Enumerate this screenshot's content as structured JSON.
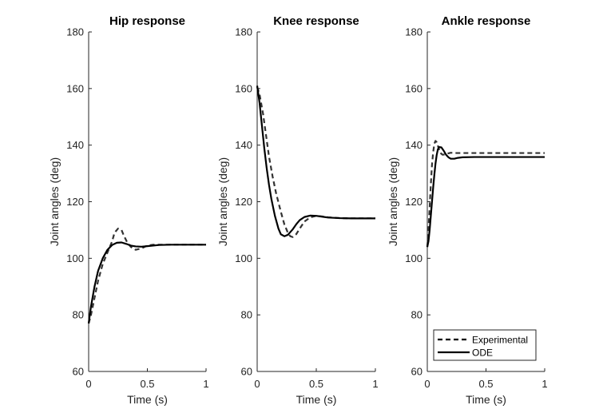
{
  "chart_data": [
    {
      "type": "line",
      "title": "Hip response",
      "xlabel": "Time (s)",
      "ylabel": "Joint angles (deg)",
      "xlim": [
        0,
        1
      ],
      "ylim": [
        60,
        180
      ],
      "xticks": [
        "0",
        "0.5",
        "1"
      ],
      "yticks": [
        "60",
        "80",
        "100",
        "120",
        "140",
        "160",
        "180"
      ],
      "grid": false,
      "series": [
        {
          "name": "Experimental",
          "style": "dashed",
          "x": [
            0,
            0.02,
            0.05,
            0.08,
            0.12,
            0.16,
            0.2,
            0.22,
            0.25,
            0.28,
            0.3,
            0.33,
            0.36,
            0.4,
            0.45,
            0.5,
            0.55,
            0.6,
            0.7,
            0.8,
            0.9,
            1.0
          ],
          "y": [
            77,
            80,
            86,
            92,
            98,
            102,
            106,
            109,
            110.5,
            110,
            108,
            105.5,
            104,
            103,
            103.5,
            104.5,
            104.8,
            104.8,
            104.8,
            104.8,
            104.8,
            104.8
          ]
        },
        {
          "name": "ODE",
          "style": "solid",
          "x": [
            0,
            0.02,
            0.05,
            0.08,
            0.12,
            0.16,
            0.2,
            0.24,
            0.28,
            0.32,
            0.36,
            0.4,
            0.45,
            0.5,
            0.6,
            0.7,
            0.8,
            0.9,
            1.0
          ],
          "y": [
            77,
            83,
            90,
            95.5,
            100,
            103,
            104.7,
            105.5,
            105.6,
            105.1,
            104.5,
            104.2,
            104.1,
            104.3,
            104.7,
            104.8,
            104.8,
            104.8,
            104.8
          ]
        }
      ]
    },
    {
      "type": "line",
      "title": "Knee response",
      "xlabel": "Time (s)",
      "ylabel": "Joint angles (deg)",
      "xlim": [
        0,
        1
      ],
      "ylim": [
        60,
        180
      ],
      "xticks": [
        "0",
        "0.5",
        "1"
      ],
      "yticks": [
        "60",
        "80",
        "100",
        "120",
        "140",
        "160",
        "180"
      ],
      "grid": false,
      "series": [
        {
          "name": "Experimental",
          "style": "dashed",
          "x": [
            0,
            0.02,
            0.05,
            0.08,
            0.1,
            0.13,
            0.16,
            0.2,
            0.23,
            0.26,
            0.28,
            0.3,
            0.33,
            0.36,
            0.4,
            0.45,
            0.5,
            0.55,
            0.6,
            0.7,
            0.8,
            0.9,
            1.0
          ],
          "y": [
            160.5,
            158,
            151,
            142,
            136,
            129,
            123,
            116.5,
            112,
            109,
            107.8,
            107.5,
            108.5,
            110.5,
            113,
            114.5,
            115,
            114.8,
            114.5,
            114.2,
            114.1,
            114.1,
            114.1
          ]
        },
        {
          "name": "ODE",
          "style": "solid",
          "x": [
            0,
            0.02,
            0.04,
            0.06,
            0.08,
            0.1,
            0.12,
            0.15,
            0.18,
            0.2,
            0.23,
            0.26,
            0.3,
            0.33,
            0.36,
            0.4,
            0.45,
            0.5,
            0.55,
            0.6,
            0.7,
            0.8,
            0.9,
            1.0
          ],
          "y": [
            161,
            155,
            147,
            139,
            132,
            126,
            121,
            115,
            110.5,
            108.5,
            107.8,
            108.3,
            110.2,
            112,
            113.5,
            114.6,
            115.1,
            115,
            114.7,
            114.4,
            114.2,
            114.1,
            114.1,
            114.1
          ]
        }
      ]
    },
    {
      "type": "line",
      "title": "Ankle response",
      "xlabel": "Time (s)",
      "ylabel": "Joint angles (deg)",
      "xlim": [
        0,
        1
      ],
      "ylim": [
        60,
        180
      ],
      "xticks": [
        "0",
        "0.5",
        "1"
      ],
      "yticks": [
        "60",
        "80",
        "100",
        "120",
        "140",
        "160",
        "180"
      ],
      "grid": false,
      "legend": {
        "position": "bottom-right",
        "entries": [
          "Experimental",
          "ODE"
        ]
      },
      "series": [
        {
          "name": "Experimental",
          "style": "dashed",
          "x": [
            0,
            0.01,
            0.02,
            0.03,
            0.04,
            0.05,
            0.06,
            0.07,
            0.08,
            0.09,
            0.1,
            0.11,
            0.13,
            0.15,
            0.17,
            0.2,
            0.25,
            0.3,
            0.4,
            0.5,
            0.6,
            0.7,
            0.8,
            0.9,
            1.0
          ],
          "y": [
            104,
            110,
            118,
            126,
            133,
            137.5,
            140.5,
            141.5,
            141,
            139.8,
            138.5,
            137.3,
            136.6,
            136.7,
            137,
            137.3,
            137.2,
            137.2,
            137.2,
            137.2,
            137.2,
            137.2,
            137.2,
            137.2,
            137.2
          ]
        },
        {
          "name": "ODE",
          "style": "solid",
          "x": [
            0,
            0.01,
            0.02,
            0.03,
            0.04,
            0.05,
            0.06,
            0.07,
            0.08,
            0.09,
            0.1,
            0.12,
            0.14,
            0.16,
            0.18,
            0.2,
            0.23,
            0.26,
            0.3,
            0.4,
            0.5,
            0.6,
            0.7,
            0.8,
            0.9,
            1.0
          ],
          "y": [
            104,
            106,
            110,
            115,
            120,
            125,
            129.5,
            133.5,
            136.5,
            138.5,
            139.3,
            139.2,
            138,
            136.6,
            135.7,
            135.2,
            135.2,
            135.5,
            135.7,
            135.8,
            135.8,
            135.8,
            135.8,
            135.8,
            135.8,
            135.8
          ]
        }
      ]
    }
  ]
}
